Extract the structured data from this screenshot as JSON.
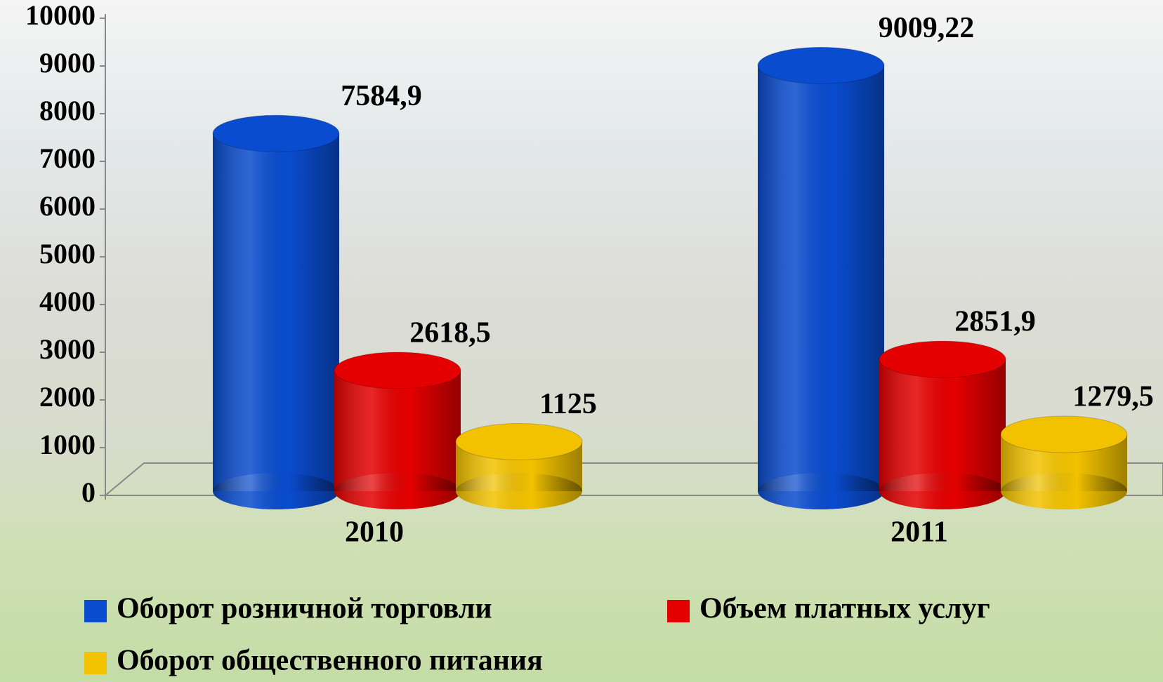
{
  "chart_data": {
    "type": "bar3d",
    "categories": [
      "2010",
      "2011"
    ],
    "series": [
      {
        "name": "Оборот розничной торговли",
        "color": "#0a4ccf",
        "values": [
          7584.9,
          9009.22
        ],
        "value_labels": [
          "7584,9",
          "9009,22"
        ]
      },
      {
        "name": "Объем платных услуг",
        "color": "#e40000",
        "values": [
          2618.5,
          2851.9
        ],
        "value_labels": [
          "2618,5",
          "2851,9"
        ]
      },
      {
        "name": "Оборот общественного питания",
        "color": "#f2c200",
        "values": [
          1125,
          1279.5
        ],
        "value_labels": [
          "1125",
          "1279,5"
        ]
      }
    ],
    "ylim": [
      0,
      10000
    ],
    "yticks": [
      0,
      1000,
      2000,
      3000,
      4000,
      5000,
      6000,
      7000,
      8000,
      9000,
      10000
    ]
  }
}
